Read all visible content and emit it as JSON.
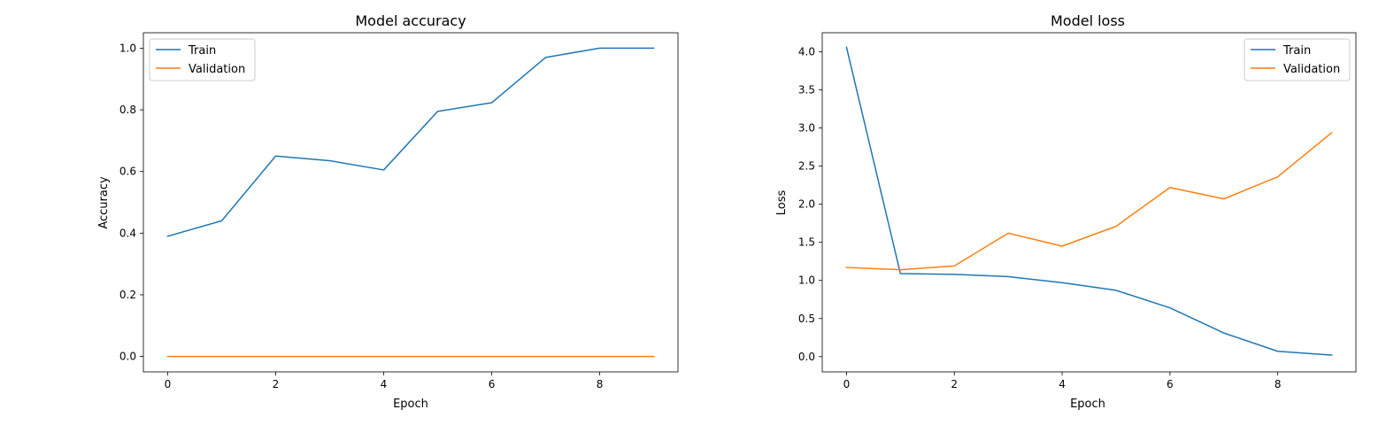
{
  "colors": {
    "train": "#1f77b4",
    "validation": "#ff7f0e",
    "axes": "#000000",
    "background": "#ffffff"
  },
  "chart_data": [
    {
      "type": "line",
      "title": "Model accuracy",
      "xlabel": "Epoch",
      "ylabel": "Accuracy",
      "xlim": [
        -0.45,
        9.45
      ],
      "ylim": [
        -0.05,
        1.05
      ],
      "xticks": [
        0,
        2,
        4,
        6,
        8
      ],
      "xtick_labels": [
        "0",
        "2",
        "4",
        "6",
        "8"
      ],
      "yticks": [
        0.0,
        0.2,
        0.4,
        0.6,
        0.8,
        1.0
      ],
      "ytick_labels": [
        "0.0",
        "0.2",
        "0.4",
        "0.6",
        "0.8",
        "1.0"
      ],
      "grid": false,
      "legend_position": "top-left",
      "x": [
        0,
        1,
        2,
        3,
        4,
        5,
        6,
        7,
        8,
        9
      ],
      "series": [
        {
          "name": "Train",
          "color": "#1f77b4",
          "values": [
            0.39,
            0.44,
            0.65,
            0.635,
            0.605,
            0.795,
            0.823,
            0.97,
            1.0,
            1.0
          ]
        },
        {
          "name": "Validation",
          "color": "#ff7f0e",
          "values": [
            0.0,
            0.0,
            0.0,
            0.0,
            0.0,
            0.0,
            0.0,
            0.0,
            0.0,
            0.0
          ]
        }
      ]
    },
    {
      "type": "line",
      "title": "Model loss",
      "xlabel": "Epoch",
      "ylabel": "Loss",
      "xlim": [
        -0.45,
        9.45
      ],
      "ylim": [
        -0.2,
        4.25
      ],
      "xticks": [
        0,
        2,
        4,
        6,
        8
      ],
      "xtick_labels": [
        "0",
        "2",
        "4",
        "6",
        "8"
      ],
      "yticks": [
        0.0,
        0.5,
        1.0,
        1.5,
        2.0,
        2.5,
        3.0,
        3.5,
        4.0
      ],
      "ytick_labels": [
        "0.0",
        "0.5",
        "1.0",
        "1.5",
        "2.0",
        "2.5",
        "3.0",
        "3.5",
        "4.0"
      ],
      "grid": false,
      "legend_position": "top-right",
      "x": [
        0,
        1,
        2,
        3,
        4,
        5,
        6,
        7,
        8,
        9
      ],
      "series": [
        {
          "name": "Train",
          "color": "#1f77b4",
          "values": [
            4.06,
            1.09,
            1.08,
            1.05,
            0.97,
            0.87,
            0.64,
            0.31,
            0.07,
            0.02
          ]
        },
        {
          "name": "Validation",
          "color": "#ff7f0e",
          "values": [
            1.17,
            1.14,
            1.19,
            1.62,
            1.45,
            1.71,
            2.22,
            2.07,
            2.36,
            2.94
          ]
        }
      ]
    }
  ]
}
